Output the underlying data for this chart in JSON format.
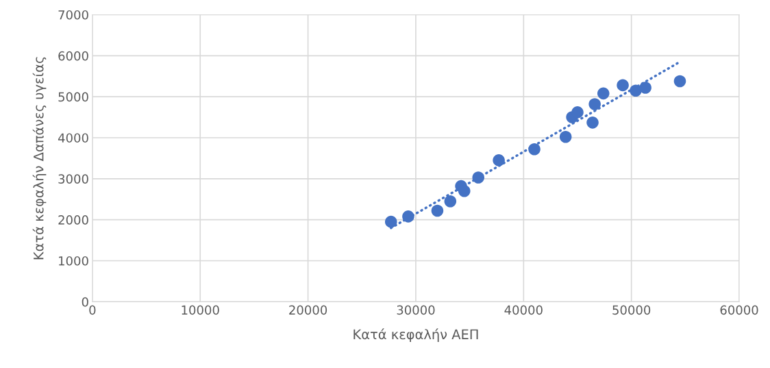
{
  "chart_data": {
    "type": "scatter",
    "xlabel": "Κατά κεφαλήν ΑΕΠ",
    "ylabel": "Κατά κεφαλήν Δαπάνες υγείας",
    "xlim": [
      0,
      60000
    ],
    "xticks": [
      0,
      10000,
      20000,
      30000,
      40000,
      50000,
      60000
    ],
    "ylim": [
      0,
      7000
    ],
    "yticks": [
      0,
      1000,
      2000,
      3000,
      4000,
      5000,
      6000,
      7000
    ],
    "grid": true,
    "series": [
      {
        "marker": "circle",
        "color": "#4472c4",
        "x": [
          27700,
          29300,
          32000,
          33200,
          34200,
          34500,
          35800,
          37700,
          41000,
          43900,
          44500,
          45000,
          46400,
          46600,
          47400,
          49200,
          50400,
          51300,
          54500
        ],
        "values": [
          1950,
          2080,
          2220,
          2450,
          2820,
          2700,
          3030,
          3450,
          3720,
          4020,
          4500,
          4620,
          4370,
          4820,
          5080,
          5280,
          5150,
          5220,
          5380
        ]
      },
      {
        "type": "line",
        "color": "#4472c4",
        "line_style": "dotted",
        "x": [
          27700,
          54500
        ],
        "values": [
          1800,
          5850
        ]
      }
    ]
  }
}
